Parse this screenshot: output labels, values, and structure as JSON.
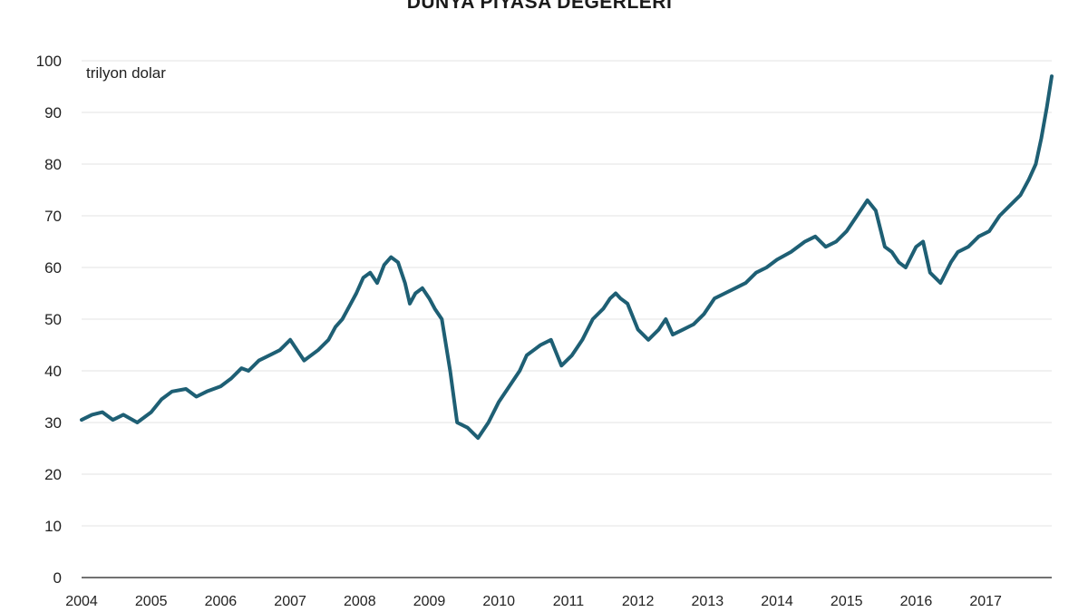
{
  "chart_data": {
    "type": "line",
    "title": "DÜNYA PİYASA DEĞERLERİ",
    "unit_label": "trilyon dolar",
    "xlabel": "",
    "ylabel": "",
    "xlim": [
      2004.0,
      2017.95
    ],
    "ylim": [
      0,
      100
    ],
    "y_ticks": [
      "0",
      "10",
      "20",
      "30",
      "40",
      "50",
      "60",
      "70",
      "80",
      "90",
      "100"
    ],
    "x_ticks": [
      "2004",
      "2005",
      "2006",
      "2007",
      "2008",
      "2009",
      "2010",
      "2011",
      "2012",
      "2013",
      "2014",
      "2015",
      "2016",
      "2017"
    ],
    "grid": "horizontal",
    "colors": {
      "line": "#1e5f74",
      "grid": "#e3e3e3",
      "axis": "#444444"
    },
    "series": [
      {
        "x": [
          2004.0,
          2004.15,
          2004.3,
          2004.45,
          2004.6,
          2004.8,
          2005.0,
          2005.15,
          2005.3,
          2005.5,
          2005.65,
          2005.8,
          2006.0,
          2006.15,
          2006.3,
          2006.4,
          2006.55,
          2006.7,
          2006.85,
          2007.0,
          2007.2,
          2007.4,
          2007.55,
          2007.65,
          2007.75,
          2007.85,
          2007.95,
          2008.05,
          2008.15,
          2008.25,
          2008.35,
          2008.45,
          2008.55,
          2008.65,
          2008.72,
          2008.8,
          2008.9,
          2009.0,
          2009.08,
          2009.18,
          2009.3,
          2009.4,
          2009.55,
          2009.7,
          2009.85,
          2010.0,
          2010.15,
          2010.3,
          2010.4,
          2010.5,
          2010.6,
          2010.75,
          2010.9,
          2011.05,
          2011.2,
          2011.35,
          2011.5,
          2011.6,
          2011.68,
          2011.75,
          2011.85,
          2012.0,
          2012.15,
          2012.3,
          2012.4,
          2012.5,
          2012.65,
          2012.8,
          2012.95,
          2013.1,
          2013.25,
          2013.4,
          2013.55,
          2013.7,
          2013.85,
          2014.0,
          2014.2,
          2014.4,
          2014.55,
          2014.7,
          2014.85,
          2015.0,
          2015.15,
          2015.3,
          2015.42,
          2015.55,
          2015.65,
          2015.75,
          2015.85,
          2016.0,
          2016.1,
          2016.2,
          2016.35,
          2016.5,
          2016.6,
          2016.75,
          2016.9,
          2017.05,
          2017.2,
          2017.35,
          2017.5,
          2017.62,
          2017.72,
          2017.8,
          2017.88,
          2017.95
        ],
        "y": [
          30.5,
          31.5,
          32,
          30.5,
          31.5,
          30,
          32,
          34.5,
          36,
          36.5,
          35,
          36,
          37,
          38.5,
          40.5,
          40,
          42,
          43,
          44,
          46,
          42,
          44,
          46,
          48.5,
          50,
          52.5,
          55,
          58,
          59,
          57,
          60.5,
          62,
          61,
          57,
          53,
          55,
          56,
          54,
          52,
          50,
          40,
          30,
          29,
          27,
          30,
          34,
          37,
          40,
          43,
          44,
          45,
          46,
          41,
          43,
          46,
          50,
          52,
          54,
          55,
          54,
          53,
          48,
          46,
          48,
          50,
          47,
          48,
          49,
          51,
          54,
          55,
          56,
          57,
          59,
          60,
          61.5,
          63,
          65,
          66,
          64,
          65,
          67,
          70,
          73,
          71,
          64,
          63,
          61,
          60,
          64,
          65,
          59,
          57,
          61,
          63,
          64,
          66,
          67,
          70,
          72,
          74,
          77,
          80,
          85,
          91,
          97
        ]
      }
    ]
  }
}
